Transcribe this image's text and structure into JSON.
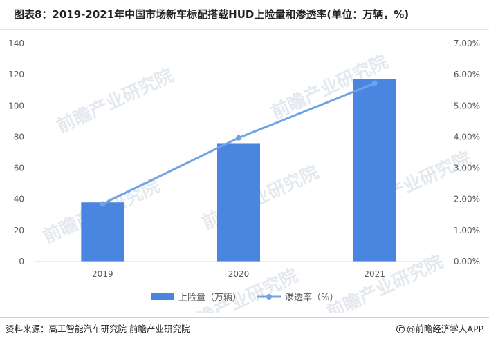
{
  "header": {
    "title": "图表8：2019-2021年中国市场新车标配搭载HUD上险量和渗透率(单位：万辆，%)"
  },
  "footer": {
    "source": "资料来源：高工智能汽车研究院 前瞻产业研究院",
    "brand": "@前瞻经济学人APP"
  },
  "watermark": {
    "text": "前瞻产业研究院"
  },
  "colors": {
    "bar": "#4a86e0",
    "line": "#6fa3e6",
    "axis": "#d9d9d9",
    "text": "#595959"
  },
  "chart_data": {
    "type": "bar",
    "categories": [
      "2019",
      "2020",
      "2021"
    ],
    "series": [
      {
        "name": "上险量（万辆）",
        "type": "bar",
        "axis": "left",
        "values": [
          38,
          76,
          117
        ]
      },
      {
        "name": "渗透率（%）",
        "type": "line",
        "axis": "right",
        "values": [
          1.85,
          3.97,
          5.72
        ]
      }
    ],
    "y_left": {
      "ticks": [
        "0",
        "20",
        "40",
        "60",
        "80",
        "100",
        "120",
        "140"
      ],
      "ylim": [
        0,
        140
      ]
    },
    "y_right": {
      "ticks": [
        "0.00%",
        "1.00%",
        "2.00%",
        "3.00%",
        "4.00%",
        "5.00%",
        "6.00%",
        "7.00%"
      ],
      "ylim": [
        0,
        7
      ]
    },
    "grid": false,
    "legend_position": "bottom"
  }
}
